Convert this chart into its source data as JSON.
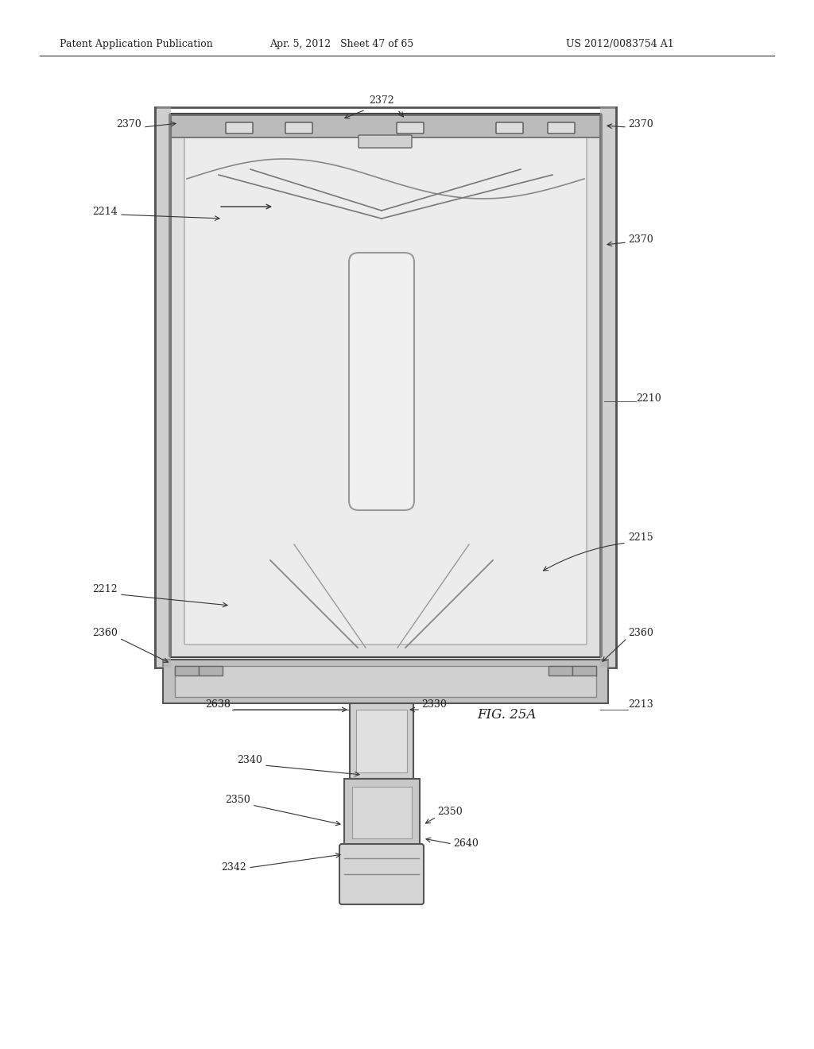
{
  "header_left": "Patent Application Publication",
  "header_mid": "Apr. 5, 2012   Sheet 47 of 65",
  "header_right": "US 2012/0083754 A1",
  "fig_label": "FIG. 25A",
  "bg_color": "#ffffff",
  "labels": {
    "2370_top_left": "2370",
    "2372": "2372",
    "2370_top_right": "2370",
    "2214": "2214",
    "2370_right": "2370",
    "2210": "2210",
    "2215": "2215",
    "2212": "2212",
    "2360_left": "2360",
    "2360_right": "2360",
    "2638": "2638",
    "2330": "2330",
    "2213": "2213",
    "2340": "2340",
    "2350_left": "2350",
    "2350_right": "2350",
    "2640": "2640",
    "2342": "2342"
  }
}
